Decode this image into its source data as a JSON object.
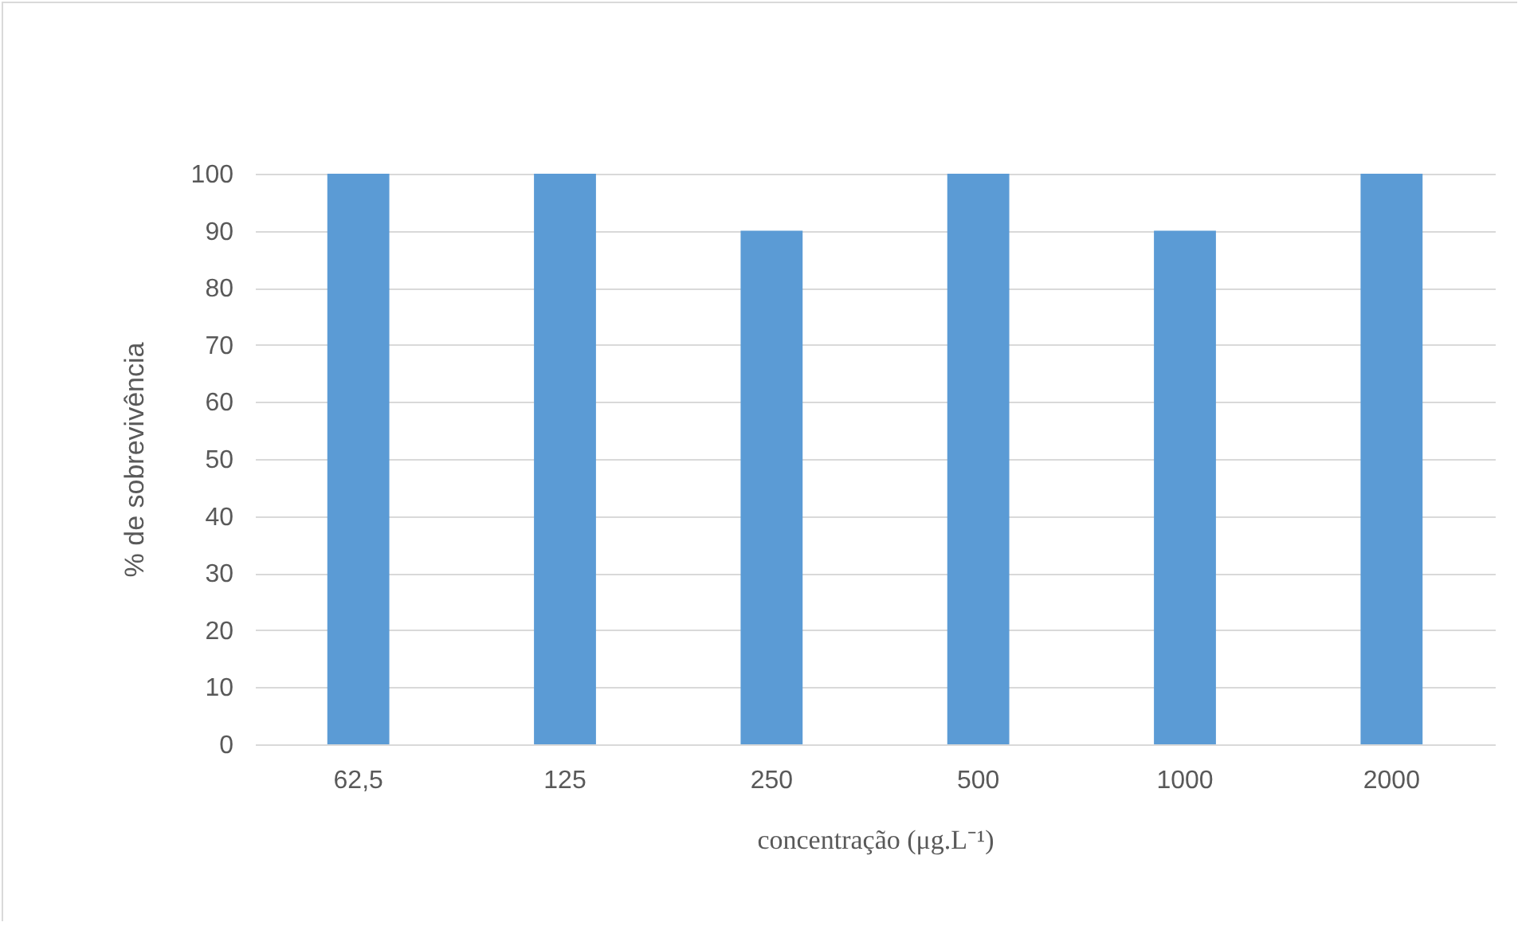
{
  "chart_data": {
    "type": "bar",
    "xlabel": "concentração (μg.L⁻¹)",
    "ylabel": "% de sobrevivência",
    "categories": [
      "62,5",
      "125",
      "250",
      "500",
      "1000",
      "2000"
    ],
    "values": [
      100,
      100,
      90,
      100,
      90,
      100
    ],
    "color": "#5b9bd5",
    "ylim": [
      0,
      100
    ],
    "yticks": [
      0,
      10,
      20,
      30,
      40,
      50,
      60,
      70,
      80,
      90,
      100
    ],
    "grid": "y"
  }
}
